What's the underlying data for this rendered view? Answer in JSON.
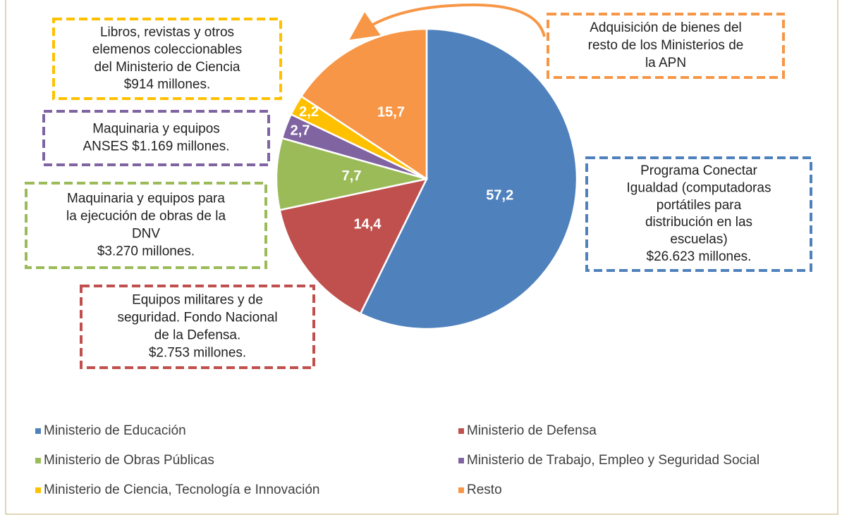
{
  "chart_data": {
    "type": "pie",
    "categories": [
      "Ministerio de Educación",
      "Ministerio de Defensa",
      "Ministerio de Obras Públicas",
      "Ministerio de Trabajo, Empleo y Seguridad Social",
      "Ministerio de Ciencia, Tecnología e Innovación",
      "Resto"
    ],
    "values": [
      57.2,
      14.4,
      7.7,
      2.7,
      2.2,
      15.7
    ],
    "value_labels": [
      "57,2",
      "14,4",
      "7,7",
      "2,7",
      "2,2",
      "15,7"
    ],
    "colors": [
      "#4f81bd",
      "#c0504d",
      "#9bbb59",
      "#8064a2",
      "#ffc000",
      "#f79646"
    ],
    "annotations": [
      {
        "lines": [
          "Programa Conectar",
          "Igualdad (computadoras",
          "portátiles para",
          "distribución en las",
          "escuelas)",
          "$26.623  millones."
        ],
        "color": "#4f81bd"
      },
      {
        "lines": [
          "Equipos militares y de",
          "seguridad. Fondo Nacional",
          "de la Defensa.",
          "$2.753 millones."
        ],
        "color": "#c0504d"
      },
      {
        "lines": [
          "Maquinaria y equipos para",
          "la ejecución de obras de la",
          "DNV",
          "$3.270 millones."
        ],
        "color": "#9bbb59"
      },
      {
        "lines": [
          "Maquinaria y equipos",
          "ANSES $1.169 millones."
        ],
        "color": "#8064a2"
      },
      {
        "lines": [
          "Libros, revistas y otros",
          "elemenos coleccionables",
          "del Ministerio de Ciencia",
          "$914 millones."
        ],
        "color": "#ffc000"
      },
      {
        "lines": [
          "Adquisición de bienes del",
          "resto de los Ministerios de",
          "la APN"
        ],
        "color": "#f79646"
      }
    ],
    "legend": "bottom"
  }
}
